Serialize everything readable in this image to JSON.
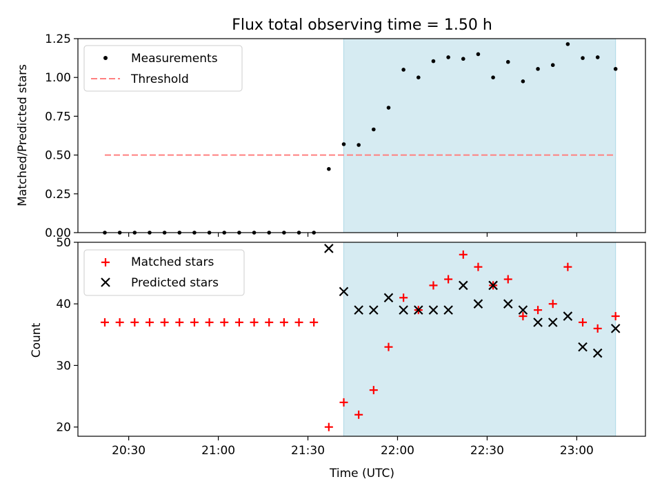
{
  "chart_data": [
    {
      "type": "scatter",
      "title": "Flux total observing time = 1.50 h",
      "xlabel": "",
      "ylabel": "Matched/Predicted stars",
      "ylim": [
        0,
        1.25
      ],
      "yticks": [
        "0.00",
        "0.25",
        "0.50",
        "0.75",
        "1.00",
        "1.25"
      ],
      "xlim": [
        "20:13",
        "23:23"
      ],
      "legend_position": "top-left",
      "highlight_span": [
        "21:42",
        "23:13"
      ],
      "series": [
        {
          "name": "Measurements",
          "marker": "dot",
          "color": "#000000",
          "x": [
            "20:22",
            "20:27",
            "20:32",
            "20:37",
            "20:42",
            "20:47",
            "20:52",
            "20:57",
            "21:02",
            "21:07",
            "21:12",
            "21:17",
            "21:22",
            "21:27",
            "21:32",
            "21:37",
            "21:42",
            "21:47",
            "21:52",
            "21:57",
            "22:02",
            "22:07",
            "22:12",
            "22:17",
            "22:22",
            "22:27",
            "22:32",
            "22:37",
            "22:42",
            "22:47",
            "22:52",
            "22:57",
            "23:02",
            "23:07",
            "23:13"
          ],
          "values": [
            0,
            0,
            0,
            0,
            0,
            0,
            0,
            0,
            0,
            0,
            0,
            0,
            0,
            0,
            0,
            0.41,
            0.57,
            0.565,
            0.665,
            0.805,
            1.05,
            1.0,
            1.105,
            1.13,
            1.12,
            1.15,
            1.0,
            1.1,
            0.975,
            1.055,
            1.08,
            1.215,
            1.125,
            1.13,
            1.055
          ]
        },
        {
          "name": "Threshold",
          "marker": "dashed-line",
          "color": "#ff7f7f",
          "x": [
            "20:22",
            "23:13"
          ],
          "values": [
            0.5,
            0.5
          ]
        }
      ]
    },
    {
      "type": "scatter",
      "title": "",
      "xlabel": "Time (UTC)",
      "ylabel": "Count",
      "ylim": [
        18.5,
        50
      ],
      "yticks": [
        "20",
        "30",
        "40",
        "50"
      ],
      "xlim": [
        "20:13",
        "23:23"
      ],
      "xticks": [
        "20:30",
        "21:00",
        "21:30",
        "22:00",
        "22:30",
        "23:00"
      ],
      "legend_position": "top-left",
      "highlight_span": [
        "21:42",
        "23:13"
      ],
      "series": [
        {
          "name": "Matched stars",
          "marker": "plus",
          "color": "#ff0000",
          "x": [
            "20:22",
            "20:27",
            "20:32",
            "20:37",
            "20:42",
            "20:47",
            "20:52",
            "20:57",
            "21:02",
            "21:07",
            "21:12",
            "21:17",
            "21:22",
            "21:27",
            "21:32",
            "21:37",
            "21:42",
            "21:47",
            "21:52",
            "21:57",
            "22:02",
            "22:07",
            "22:12",
            "22:17",
            "22:22",
            "22:27",
            "22:32",
            "22:37",
            "22:42",
            "22:47",
            "22:52",
            "22:57",
            "23:02",
            "23:07",
            "23:13"
          ],
          "values": [
            37,
            37,
            37,
            37,
            37,
            37,
            37,
            37,
            37,
            37,
            37,
            37,
            37,
            37,
            37,
            20,
            24,
            22,
            26,
            33,
            41,
            39,
            43,
            44,
            48,
            46,
            43,
            44,
            38,
            39,
            40,
            46,
            37,
            36,
            38
          ]
        },
        {
          "name": "Predicted stars",
          "marker": "x",
          "color": "#000000",
          "x": [
            "21:37",
            "21:42",
            "21:47",
            "21:52",
            "21:57",
            "22:02",
            "22:07",
            "22:12",
            "22:17",
            "22:22",
            "22:27",
            "22:32",
            "22:37",
            "22:42",
            "22:47",
            "22:52",
            "22:57",
            "23:02",
            "23:07",
            "23:13"
          ],
          "values": [
            49,
            42,
            39,
            39,
            41,
            39,
            39,
            39,
            39,
            43,
            40,
            43,
            40,
            39,
            37,
            37,
            38,
            33,
            32,
            36
          ]
        }
      ]
    }
  ],
  "colors": {
    "highlight": "#add8e6",
    "axes": "#000000"
  }
}
